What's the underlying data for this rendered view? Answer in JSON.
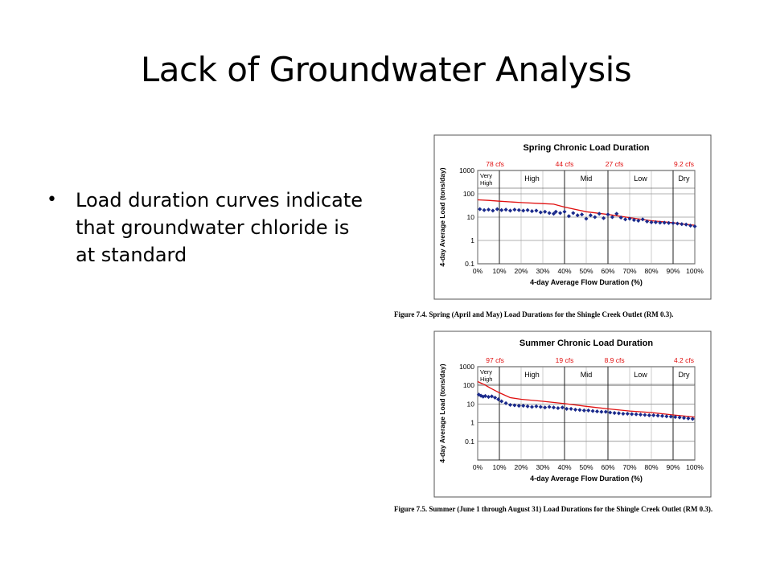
{
  "slide": {
    "title": "Lack of Groundwater Analysis",
    "bullet": "Load duration curves indicate that groundwater chloride is at standard"
  },
  "colors": {
    "curve": "#e01010",
    "points": "#1a2a8c",
    "flow_labels": "#e01010"
  },
  "chart_data": [
    {
      "type": "scatter",
      "title": "Spring Chronic Load Duration",
      "xlabel": "4-day Average Flow Duration (%)",
      "ylabel": "4-day Average Load (tons/day)",
      "xlim": [
        0,
        100
      ],
      "ylim": [
        0.1,
        1000
      ],
      "yscale": "log",
      "x_ticks": [
        "0%",
        "10%",
        "20%",
        "30%",
        "40%",
        "50%",
        "60%",
        "70%",
        "80%",
        "90%",
        "100%"
      ],
      "y_ticks": [
        "0.1",
        "1",
        "10",
        "100",
        "1000"
      ],
      "grid": true,
      "flow_labels": [
        {
          "x": 8,
          "text": "78 cfs"
        },
        {
          "x": 40,
          "text": "44 cfs"
        },
        {
          "x": 63,
          "text": "27 cfs"
        },
        {
          "x": 95,
          "text": "9.2 cfs"
        }
      ],
      "zones": [
        {
          "from": 0,
          "to": 10,
          "label": "Very High"
        },
        {
          "from": 10,
          "to": 40,
          "label": "High"
        },
        {
          "from": 40,
          "to": 60,
          "label": "Mid"
        },
        {
          "from": 60,
          "to": 90,
          "label": "Low"
        },
        {
          "from": 90,
          "to": 100,
          "label": "Dry"
        }
      ],
      "series": [
        {
          "kind": "line",
          "x": [
            0,
            5,
            10,
            20,
            30,
            35,
            40,
            50,
            60,
            70,
            80,
            90,
            95,
            100
          ],
          "y": [
            55,
            52,
            48,
            42,
            38,
            36,
            27,
            17,
            13,
            9.5,
            7,
            5.8,
            5,
            4.5
          ]
        },
        {
          "kind": "scatter",
          "x": [
            1,
            3,
            5,
            7,
            9,
            11,
            13,
            15,
            17,
            19,
            21,
            23,
            25,
            27,
            29,
            31,
            33,
            35,
            36,
            38,
            40,
            42,
            44,
            46,
            48,
            50,
            52,
            54,
            56,
            58,
            60,
            62,
            64,
            66,
            68,
            70,
            72,
            74,
            76,
            78,
            80,
            82,
            84,
            86,
            88,
            90,
            92,
            94,
            96,
            98,
            100
          ],
          "y": [
            22,
            20,
            21,
            19,
            22,
            20,
            21,
            19,
            21,
            20,
            19,
            20,
            18,
            19,
            16,
            17,
            15,
            14,
            17,
            15,
            17,
            11,
            15,
            12,
            13,
            8.5,
            12,
            10,
            14,
            9,
            13,
            10,
            14,
            9.5,
            8,
            8.5,
            7.5,
            7,
            8,
            6.5,
            6,
            6,
            5.8,
            5.8,
            5.6,
            5.5,
            5.3,
            5,
            4.8,
            4.3,
            4
          ]
        }
      ],
      "caption": "Figure 7.4.  Spring (April and May) Load Durations for the Shingle Creek Outlet (RM 0.3)."
    },
    {
      "type": "scatter",
      "title": "Summer Chronic Load Duration",
      "xlabel": "4-day Average Flow Duration (%)",
      "ylabel": "4-day Average Load (tons/day)",
      "xlim": [
        0,
        100
      ],
      "ylim": [
        0.01,
        1000
      ],
      "yscale": "log",
      "x_ticks": [
        "0%",
        "10%",
        "20%",
        "30%",
        "40%",
        "50%",
        "60%",
        "70%",
        "80%",
        "90%",
        "100%"
      ],
      "y_ticks": [
        "0.1",
        "1",
        "10",
        "100",
        "1000"
      ],
      "grid": true,
      "flow_labels": [
        {
          "x": 8,
          "text": "97 cfs"
        },
        {
          "x": 40,
          "text": "19 cfs"
        },
        {
          "x": 63,
          "text": "8.9 cfs"
        },
        {
          "x": 95,
          "text": "4.2 cfs"
        }
      ],
      "zones": [
        {
          "from": 0,
          "to": 10,
          "label": "Very High"
        },
        {
          "from": 10,
          "to": 40,
          "label": "High"
        },
        {
          "from": 40,
          "to": 60,
          "label": "Mid"
        },
        {
          "from": 60,
          "to": 90,
          "label": "Low"
        },
        {
          "from": 90,
          "to": 100,
          "label": "Dry"
        }
      ],
      "series": [
        {
          "kind": "line",
          "x": [
            0,
            3,
            6,
            10,
            15,
            20,
            30,
            40,
            50,
            60,
            70,
            80,
            90,
            100
          ],
          "y": [
            160,
            110,
            70,
            40,
            22,
            18,
            14,
            10.5,
            7.5,
            5.5,
            4.2,
            3.5,
            2.6,
            2.0
          ]
        },
        {
          "kind": "scatter",
          "x": [
            0.5,
            1.5,
            2.5,
            3.5,
            5,
            6.5,
            8,
            9.5,
            11,
            13,
            15,
            17,
            19,
            21,
            23,
            25,
            27,
            29,
            31,
            33,
            35,
            37,
            39,
            41,
            43,
            45,
            47,
            49,
            51,
            53,
            55,
            57,
            59,
            61,
            63,
            65,
            67,
            69,
            71,
            73,
            75,
            77,
            79,
            81,
            83,
            85,
            87,
            89,
            91,
            93,
            95,
            97,
            99
          ],
          "y": [
            32,
            28,
            25,
            27,
            24,
            26,
            22,
            18,
            14,
            11,
            9,
            8.5,
            8,
            8,
            7.5,
            7,
            7.5,
            7,
            6.5,
            7,
            6.5,
            6,
            6.5,
            5.5,
            5.5,
            5,
            4.8,
            4.5,
            4.5,
            4.2,
            4,
            3.8,
            3.8,
            3.5,
            3.3,
            3.2,
            3,
            3,
            2.9,
            2.8,
            2.7,
            2.6,
            2.5,
            2.5,
            2.4,
            2.3,
            2.2,
            2.1,
            2,
            1.9,
            1.8,
            1.7,
            1.6
          ]
        }
      ],
      "caption": "Figure 7.5.  Summer (June 1 through August 31) Load Durations for the Shingle Creek Outlet (RM 0.3)."
    }
  ]
}
